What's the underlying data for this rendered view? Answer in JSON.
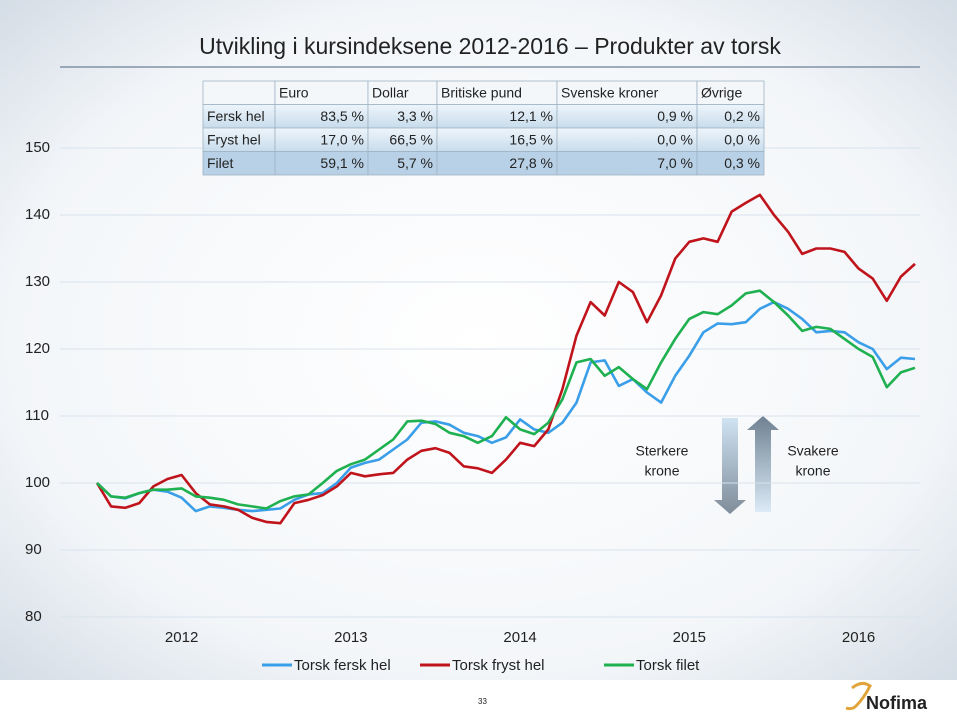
{
  "chart_data": {
    "type": "line",
    "title": "Utvikling i kursindeksene 2012-2016 – Produkter av torsk",
    "categories": [
      null,
      null,
      null,
      null,
      null,
      null,
      "2012",
      null,
      null,
      null,
      null,
      null,
      null,
      null,
      null,
      null,
      null,
      null,
      "2013",
      null,
      null,
      null,
      null,
      null,
      null,
      null,
      null,
      null,
      null,
      null,
      "2014",
      null,
      null,
      null,
      null,
      null,
      null,
      null,
      null,
      null,
      null,
      null,
      "2015",
      null,
      null,
      null,
      null,
      null,
      null,
      null,
      null,
      null,
      null,
      null,
      "2016",
      null,
      null,
      null,
      null
    ],
    "series": [
      {
        "name": "Torsk fersk hel",
        "color": "#3a9ee8",
        "values": [
          100,
          98,
          97.7,
          98.5,
          99,
          98.7,
          97.8,
          95.8,
          96.5,
          96.3,
          96,
          95.8,
          96,
          96.2,
          97.5,
          98.3,
          98.5,
          100,
          102.3,
          103,
          103.5,
          105,
          106.5,
          109,
          109.2,
          108.7,
          107.5,
          107,
          106,
          106.8,
          109.5,
          108,
          107.5,
          109,
          112,
          118,
          118.3,
          114.5,
          115.5,
          113.5,
          112,
          116,
          119,
          122.5,
          123.8,
          123.7,
          124,
          126,
          127,
          126,
          124.5,
          122.5,
          122.7,
          122.5,
          121,
          120,
          117,
          118.7,
          118.5
        ]
      },
      {
        "name": "Torsk fryst hel",
        "color": "#c0141c",
        "values": [
          100,
          96.5,
          96.3,
          97,
          99.5,
          100.6,
          101.2,
          98.5,
          96.8,
          96.5,
          96,
          94.8,
          94.2,
          94,
          97,
          97.5,
          98.2,
          99.5,
          101.5,
          101,
          101.3,
          101.5,
          103.5,
          104.8,
          105.2,
          104.5,
          102.5,
          102.2,
          101.5,
          103.5,
          106,
          105.5,
          108,
          114,
          122,
          127,
          125,
          130,
          128.5,
          124,
          128,
          133.5,
          136,
          136.5,
          136,
          140.5,
          141.8,
          143,
          140,
          137.5,
          134.2,
          135,
          135,
          134.5,
          132,
          130.5,
          127.2,
          130.8,
          132.7
        ]
      },
      {
        "name": "Torsk filet",
        "color": "#1fb050",
        "values": [
          100,
          98,
          97.8,
          98.5,
          99,
          99,
          99.2,
          98,
          97.8,
          97.5,
          96.8,
          96.5,
          96.2,
          97.3,
          98,
          98.3,
          100,
          101.8,
          102.8,
          103.5,
          105,
          106.5,
          109.2,
          109.3,
          108.8,
          107.5,
          107,
          106,
          107,
          109.8,
          108,
          107.3,
          109,
          112.5,
          118,
          118.5,
          116,
          117.3,
          115.5,
          114,
          118,
          121.5,
          124.5,
          125.5,
          125.2,
          126.5,
          128.3,
          128.7,
          127,
          125,
          122.7,
          123.3,
          123,
          121.5,
          120,
          118.8,
          114.3,
          116.5,
          117.2
        ]
      }
    ],
    "ylim": [
      80,
      150
    ],
    "yticks": [
      80,
      90,
      100,
      110,
      120,
      130,
      140,
      150
    ],
    "grid": true,
    "annotations": [
      [
        "Sterkere",
        "krone"
      ],
      [
        "Svakere",
        "krone"
      ]
    ]
  },
  "table": {
    "columns": [
      "Euro",
      "Dollar",
      "Britiske pund",
      "Svenske kroner",
      "Øvrige"
    ],
    "rows": [
      [
        "Fersk hel",
        "83,5 %",
        "3,3 %",
        "12,1 %",
        "0,9 %",
        "0,2 %"
      ],
      [
        "Fryst hel",
        "17,0 %",
        "66,5 %",
        "16,5 %",
        "0,0 %",
        "0,0 %"
      ],
      [
        "Filet",
        "59,1 %",
        "5,7 %",
        "27,8 %",
        "7,0 %",
        "0,3 %"
      ]
    ]
  },
  "footer": {
    "page": "33",
    "logo": "Nofima"
  }
}
